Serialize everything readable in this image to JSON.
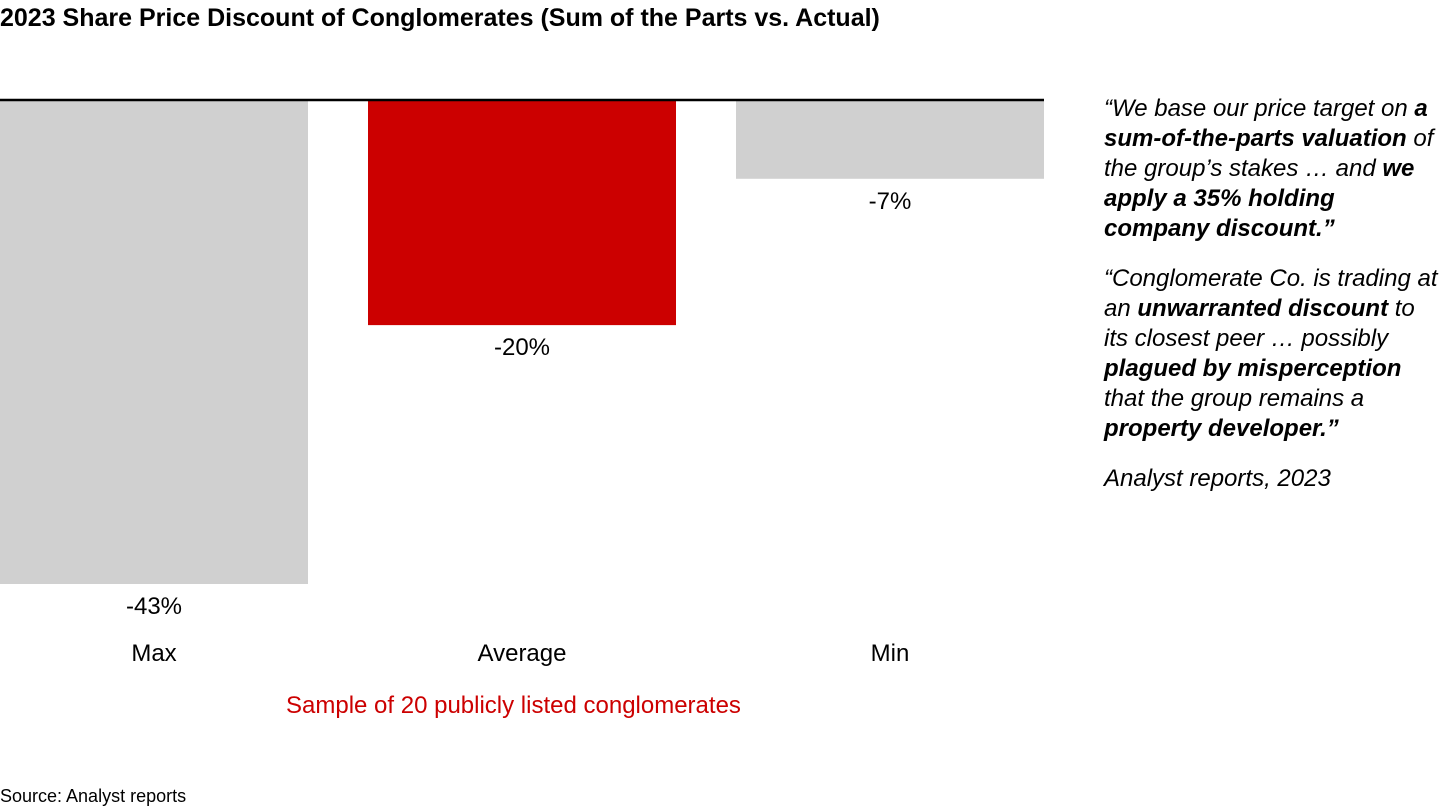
{
  "chart_data": {
    "type": "bar",
    "title": "2023 Share Price Discount of Conglomerates (Sum of the Parts vs. Actual)",
    "categories": [
      "Max",
      "Average",
      "Min"
    ],
    "values": [
      -43,
      -20,
      -7
    ],
    "data_labels": [
      "-43%",
      "-20%",
      "-7%"
    ],
    "ylim": [
      -43,
      0
    ],
    "grid": false,
    "legend": "none",
    "colors": [
      "#d0d0d0",
      "#cc0000",
      "#d0d0d0"
    ],
    "axis_color": "#000000",
    "annotation": "Sample of 20 publicly listed conglomerates",
    "annotation_color": "#cc0000"
  },
  "quotes": [
    {
      "segments": [
        {
          "text": "“We base our price target on ",
          "bold": false
        },
        {
          "text": "a sum-of-the-parts valuation",
          "bold": true
        },
        {
          "text": " of the group’s stakes … and ",
          "bold": false
        },
        {
          "text": "we apply a 35% holding company discount.”",
          "bold": true
        }
      ]
    },
    {
      "segments": [
        {
          "text": "“Conglomerate Co. is trading at an ",
          "bold": false
        },
        {
          "text": "unwarranted discount",
          "bold": true
        },
        {
          "text": " to its closest peer … possibly ",
          "bold": false
        },
        {
          "text": "plagued by misperception",
          "bold": true
        },
        {
          "text": " that the group remains a ",
          "bold": false
        },
        {
          "text": "property developer.”",
          "bold": true
        }
      ]
    }
  ],
  "quote_attribution": "Analyst reports, 2023",
  "source": "Source: Analyst reports"
}
